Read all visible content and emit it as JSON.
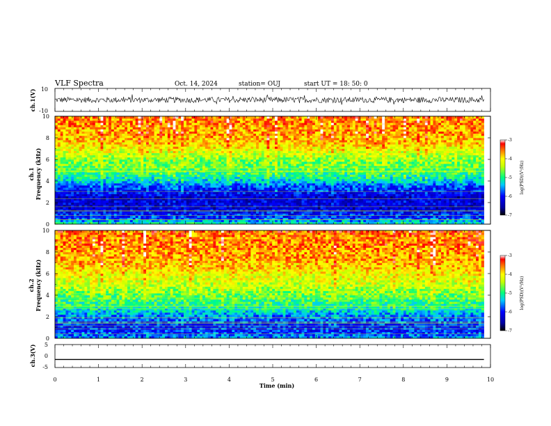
{
  "header": {
    "title": "VLF Spectra",
    "date": "Oct. 14, 2024",
    "station": "station= OUJ",
    "start": "start  UT  =   18: 50: 0"
  },
  "axes": {
    "ch1_label": "ch.1(V)",
    "ch1_yticks": [
      "10",
      "-10"
    ],
    "spec1_label": "ch.1",
    "spec2_label": "ch.2",
    "freq_label": "Frequency  (kHz)",
    "freq_ticks": [
      "0",
      "2",
      "4",
      "6",
      "8",
      "10"
    ],
    "ch3_label": "ch.3(V)",
    "ch3_yticks": [
      "5",
      "0",
      "-5"
    ],
    "time_label": "Time  (min)",
    "time_ticks": [
      "0",
      "1",
      "2",
      "3",
      "4",
      "5",
      "6",
      "7",
      "8",
      "9",
      "10"
    ]
  },
  "colorbar": {
    "label": "log(PSD)(V²/Hz)",
    "ticks": [
      "-3",
      "-4",
      "-5",
      "-6",
      "-7"
    ],
    "range": [
      -7,
      -3
    ]
  },
  "chart_data": [
    {
      "type": "line",
      "name": "ch.1 waveform",
      "ylabel": "ch.1(V)",
      "ylim": [
        -10,
        10
      ],
      "xlim": [
        0,
        10
      ],
      "x_unit": "min",
      "mean": 0,
      "amplitude_approx": 2.5
    },
    {
      "type": "heatmap",
      "name": "ch.1 spectrogram",
      "ylabel": "Frequency (kHz)",
      "xlabel": "Time (min)",
      "xlim": [
        0,
        9.85
      ],
      "ylim": [
        0,
        10
      ],
      "value_label": "log(PSD)(V²/Hz)",
      "value_range": [
        -7,
        -3
      ],
      "freq_profile_khz": [
        0,
        0.5,
        1,
        1.5,
        2,
        2.5,
        3,
        3.5,
        4,
        4.5,
        5,
        5.5,
        6,
        6.5,
        7,
        7.5,
        8,
        8.5,
        9,
        9.5,
        10
      ],
      "freq_profile_logpsd": [
        -5.0,
        -5.8,
        -6.0,
        -6.3,
        -6.2,
        -6.3,
        -6.0,
        -5.8,
        -5.3,
        -5.0,
        -4.8,
        -4.7,
        -4.6,
        -4.3,
        -4.1,
        -3.9,
        -3.8,
        -3.7,
        -3.7,
        -3.6,
        -3.6
      ]
    },
    {
      "type": "heatmap",
      "name": "ch.2 spectrogram",
      "ylabel": "Frequency (kHz)",
      "xlabel": "Time (min)",
      "xlim": [
        0,
        9.85
      ],
      "ylim": [
        0,
        10
      ],
      "value_label": "log(PSD)(V²/Hz)",
      "value_range": [
        -7,
        -3
      ],
      "freq_profile_khz": [
        0,
        0.5,
        1,
        1.5,
        2,
        2.5,
        3,
        3.5,
        4,
        4.5,
        5,
        5.5,
        6,
        6.5,
        7,
        7.5,
        8,
        8.5,
        9,
        9.5,
        10
      ],
      "freq_profile_logpsd": [
        -5.5,
        -5.8,
        -6.0,
        -5.8,
        -5.6,
        -5.3,
        -5.0,
        -4.9,
        -4.7,
        -4.5,
        -4.3,
        -4.2,
        -4.1,
        -3.9,
        -3.8,
        -3.7,
        -3.7,
        -3.6,
        -3.6,
        -3.6,
        -3.5
      ]
    },
    {
      "type": "line",
      "name": "ch.3 waveform",
      "ylabel": "ch.3(V)",
      "ylim": [
        -5,
        5
      ],
      "xlim": [
        0,
        9.85
      ],
      "x_unit": "min",
      "constant_value": -1.5
    }
  ]
}
